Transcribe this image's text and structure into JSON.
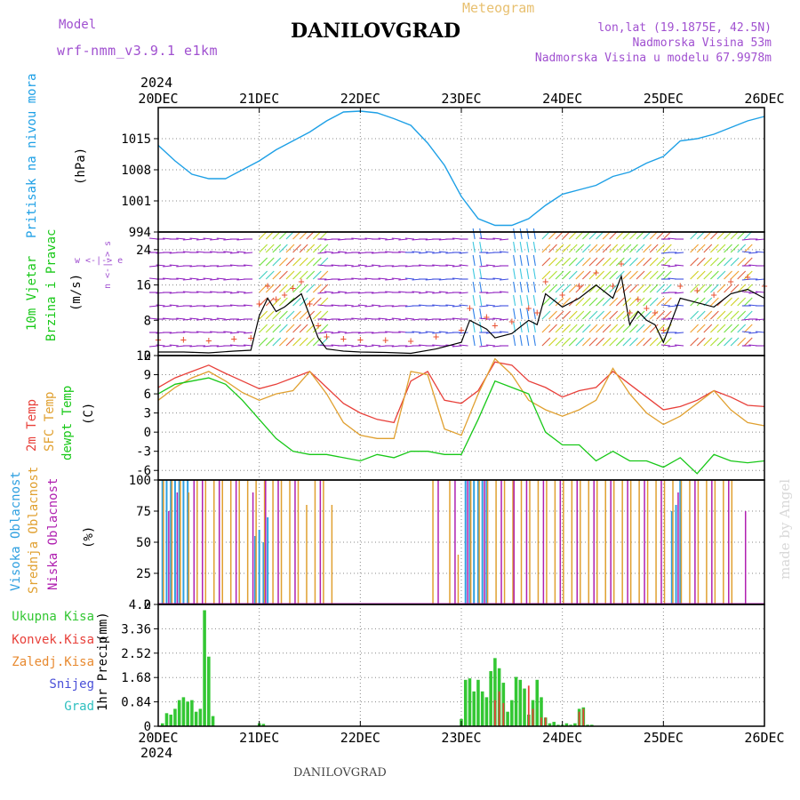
{
  "header": {
    "model_label": "Model",
    "model_value": "wrf-nmm_v3.9.1  e1km",
    "title": "DANILOVGRAD",
    "subtitle": "Meteogram",
    "lonlat": "lon,lat (19.1875E, 42.5N)",
    "elevation": "Nadmorska Visina 53m",
    "model_elevation": "Nadmorska Visina u modelu 67.9978m",
    "credit": "made by Angel",
    "footer": "DANILOVGRAD"
  },
  "colors": {
    "pressure": "#1ea0e6",
    "temp2m": "#e8403a",
    "sfc_temp": "#e0a030",
    "dewpt": "#18c818",
    "total_precip": "#33c733",
    "conv_precip": "#e8403a",
    "snow": "#4a50d8",
    "hail": "#30c0c0",
    "cloud_high": "#2fa0e0",
    "cloud_mid": "#e0a030",
    "cloud_low": "#b020b0",
    "title_purple": "#a050d0"
  },
  "chart_data": [
    {
      "type": "line",
      "panel": "pressure",
      "ylabel_parts": [
        "Pritisak na nivou mora",
        "(hPa)"
      ],
      "yticks": [
        "1015",
        "1008",
        "1001",
        "994"
      ],
      "ylim": [
        994,
        1022
      ],
      "x_range_hours": [
        0,
        144
      ],
      "x_ticks": [
        "20DEC",
        "21DEC",
        "22DEC",
        "23DEC",
        "24DEC",
        "25DEC",
        "26DEC"
      ],
      "x_year": "2024",
      "series": [
        {
          "values_x": [
            0,
            4,
            8,
            12,
            16,
            20,
            24,
            28,
            32,
            36,
            40,
            44,
            48,
            52,
            56,
            60,
            64,
            68,
            72,
            76,
            80,
            84,
            88,
            92,
            96,
            100,
            104,
            108,
            112,
            116,
            120,
            124,
            128,
            132,
            136,
            140,
            144
          ],
          "values": [
            1013.5,
            1010,
            1007,
            1006,
            1006,
            1008,
            1010,
            1012.5,
            1014.5,
            1016.5,
            1019,
            1021,
            1021.2,
            1020.8,
            1019.5,
            1018,
            1014,
            1009,
            1002,
            997,
            995.5,
            995.5,
            997,
            1000,
            1002.5,
            1003.5,
            1004.5,
            1006.5,
            1007.5,
            1009.5,
            1011,
            1014.5,
            1015,
            1016,
            1017.5,
            1019,
            1020
          ]
        }
      ]
    },
    {
      "type": "line",
      "panel": "wind",
      "ylabel_parts": [
        "10m Vjetar",
        "Brzina i Pravac",
        "(m/s)"
      ],
      "direction_legend": "w <-|-> e",
      "direction_legend_ns": "n <-|-> s",
      "yticks": [
        "24",
        "16",
        "8",
        "0"
      ],
      "ylim": [
        0,
        28
      ],
      "series": [
        {
          "name": "speed",
          "values_x": [
            0,
            6,
            12,
            18,
            22,
            24,
            26,
            28,
            30,
            32,
            34,
            36,
            38,
            40,
            44,
            48,
            54,
            60,
            66,
            72,
            74,
            78,
            80,
            84,
            88,
            90,
            92,
            96,
            100,
            104,
            108,
            110,
            112,
            114,
            116,
            118,
            120,
            124,
            128,
            132,
            136,
            140,
            144
          ],
          "values": [
            0.8,
            0.8,
            0.6,
            1.0,
            1.2,
            9,
            13,
            10,
            11,
            12.5,
            14,
            9,
            4,
            1.5,
            1,
            0.8,
            0.7,
            0.5,
            1.5,
            3,
            8,
            6,
            4,
            5,
            8,
            7,
            14,
            11,
            13,
            16,
            13,
            18,
            7,
            10,
            8,
            7,
            3,
            13,
            12,
            11,
            14,
            15,
            13
          ]
        }
      ]
    },
    {
      "type": "line",
      "panel": "temperature",
      "ylabel_parts": [
        "2m Temp",
        "SFC Temp",
        "dewpt Temp",
        "(C)"
      ],
      "yticks": [
        "12",
        "9",
        "6",
        "3",
        "0",
        "-3",
        "-6"
      ],
      "ylim": [
        -7.5,
        12
      ],
      "series": [
        {
          "name": "2m Temp",
          "values_x": [
            0,
            4,
            8,
            12,
            16,
            20,
            24,
            28,
            32,
            36,
            40,
            44,
            48,
            52,
            56,
            60,
            64,
            68,
            72,
            76,
            80,
            84,
            88,
            92,
            96,
            100,
            104,
            108,
            112,
            116,
            120,
            124,
            128,
            132,
            136,
            140,
            144
          ],
          "values": [
            7,
            8.5,
            9.5,
            10.5,
            9.2,
            8,
            6.8,
            7.5,
            8.5,
            9.5,
            7,
            4.5,
            3,
            2,
            1.5,
            8,
            9.5,
            5,
            4.5,
            6.5,
            11,
            10.5,
            8,
            7,
            5.5,
            6.5,
            7,
            9.5,
            7.5,
            5.5,
            3.5,
            4,
            5,
            6.5,
            5.5,
            4.2,
            4
          ]
        },
        {
          "name": "SFC Temp",
          "values_x": [
            0,
            4,
            8,
            12,
            16,
            20,
            24,
            28,
            32,
            36,
            40,
            44,
            48,
            52,
            56,
            60,
            64,
            68,
            72,
            76,
            80,
            84,
            88,
            92,
            96,
            100,
            104,
            108,
            112,
            116,
            120,
            124,
            128,
            132,
            136,
            140,
            144
          ],
          "values": [
            5,
            7,
            8.5,
            9.5,
            8,
            6.2,
            5,
            6,
            6.5,
            9.5,
            6,
            1.5,
            -0.5,
            -1,
            -1,
            9.5,
            9,
            0.5,
            -0.5,
            6,
            11.5,
            9,
            5,
            3.5,
            2.5,
            3.5,
            5,
            10,
            6,
            3,
            1.2,
            2.5,
            4.5,
            6.5,
            3.5,
            1.5,
            1
          ]
        },
        {
          "name": "dewpt Temp",
          "values_x": [
            0,
            4,
            8,
            12,
            16,
            20,
            24,
            28,
            32,
            36,
            40,
            44,
            48,
            52,
            56,
            60,
            64,
            68,
            72,
            76,
            80,
            84,
            88,
            92,
            96,
            100,
            104,
            108,
            112,
            116,
            120,
            124,
            128,
            132,
            136,
            140,
            144
          ],
          "values": [
            6,
            7.5,
            8,
            8.5,
            7.5,
            5,
            2,
            -1,
            -3,
            -3.5,
            -3.5,
            -4,
            -4.5,
            -3.5,
            -4,
            -3,
            -3,
            -3.5,
            -3.5,
            2,
            8,
            7,
            6,
            0,
            -2,
            -2,
            -4.5,
            -3,
            -4.5,
            -4.5,
            -5.5,
            -4,
            -6.5,
            -3.5,
            -4.5,
            -4.8,
            -4.5
          ]
        }
      ]
    },
    {
      "type": "bar",
      "panel": "clouds",
      "ylabel_parts": [
        "Visoka Oblacnost",
        "Srednja Oblacnost",
        "Niska Oblacnost",
        "(%)"
      ],
      "yticks": [
        "100",
        "75",
        "50",
        "25",
        "0"
      ],
      "ylim": [
        0,
        100
      ],
      "series": [
        {
          "name": "Visoka Oblacnost",
          "values_x": [
            1,
            2,
            3,
            4,
            5,
            6,
            7,
            23,
            24,
            25,
            26,
            73,
            74,
            75,
            76,
            77,
            78,
            122,
            123,
            124
          ],
          "values": [
            100,
            100,
            100,
            100,
            100,
            100,
            100,
            55,
            60,
            50,
            70,
            100,
            100,
            100,
            100,
            100,
            100,
            75,
            80,
            100
          ]
        },
        {
          "name": "Srednja Oblacnost",
          "values_x": [
            1,
            3,
            5,
            7,
            9,
            11,
            13,
            15,
            17,
            19,
            21,
            23,
            25,
            27,
            29,
            31,
            33,
            35,
            37,
            39,
            41,
            65,
            69,
            71,
            74,
            76,
            78,
            80,
            82,
            84,
            86,
            88,
            90,
            92,
            94,
            96,
            98,
            100,
            102,
            104,
            106,
            108,
            110,
            112,
            114,
            116,
            118,
            120,
            122,
            124,
            126,
            128,
            130,
            132,
            134,
            136
          ],
          "values": [
            100,
            100,
            100,
            90,
            100,
            100,
            100,
            100,
            100,
            100,
            100,
            100,
            100,
            100,
            100,
            100,
            100,
            80,
            100,
            100,
            80,
            100,
            100,
            40,
            100,
            100,
            100,
            100,
            100,
            100,
            100,
            100,
            100,
            100,
            100,
            100,
            100,
            100,
            100,
            100,
            100,
            100,
            100,
            100,
            100,
            100,
            100,
            100,
            100,
            100,
            100,
            100,
            100,
            100,
            100,
            100
          ]
        },
        {
          "name": "Niska Oblacnost",
          "values_x": [
            2,
            4,
            8,
            10,
            14,
            18,
            22,
            25,
            28,
            32,
            38,
            66,
            70,
            73,
            77,
            81,
            84,
            87,
            91,
            95,
            99,
            103,
            107,
            111,
            115,
            119,
            123,
            127,
            131,
            135,
            139
          ],
          "values": [
            75,
            90,
            100,
            100,
            100,
            100,
            90,
            100,
            100,
            100,
            100,
            100,
            100,
            100,
            100,
            100,
            100,
            100,
            100,
            100,
            100,
            100,
            100,
            100,
            100,
            100,
            90,
            100,
            100,
            100,
            75
          ]
        }
      ]
    },
    {
      "type": "bar",
      "panel": "precipitation",
      "ylabel_parts": [
        "1hr Precip",
        "(mm)"
      ],
      "legend": [
        "Ukupna Kisa",
        "Konvek.Kisa",
        "Zaledj.Kisa",
        "Snijeg",
        "Grad"
      ],
      "yticks": [
        "4.2",
        "3.36",
        "2.52",
        "1.68",
        "0.84",
        "0"
      ],
      "ylim": [
        0,
        4.2
      ],
      "series": [
        {
          "name": "Ukupna Kisa",
          "values_x": [
            1,
            2,
            3,
            4,
            5,
            6,
            7,
            8,
            9,
            10,
            11,
            12,
            13,
            24,
            25,
            72,
            73,
            74,
            75,
            76,
            77,
            78,
            79,
            80,
            81,
            82,
            83,
            84,
            85,
            86,
            87,
            88,
            89,
            90,
            91,
            92,
            93,
            94,
            95,
            96,
            97,
            98,
            99,
            100,
            101,
            102,
            103
          ],
          "values": [
            0.1,
            0.45,
            0.4,
            0.6,
            0.9,
            1.0,
            0.85,
            0.9,
            0.5,
            0.6,
            4.0,
            2.4,
            0.35,
            0.1,
            0.08,
            0.25,
            1.6,
            1.65,
            1.2,
            1.6,
            1.2,
            1.0,
            1.9,
            2.35,
            2.0,
            1.5,
            0.5,
            0.9,
            1.7,
            1.6,
            1.3,
            0.4,
            0.9,
            1.6,
            1.0,
            0.3,
            0.1,
            0.15,
            0.05,
            0.05,
            0.1,
            0.05,
            0.1,
            0.6,
            0.65,
            0.05,
            0.05
          ]
        },
        {
          "name": "Konvek.Kisa",
          "values_x": [
            80,
            81,
            82,
            88,
            89,
            91,
            92,
            100,
            101
          ],
          "values": [
            0.9,
            1.2,
            0.8,
            1.4,
            0.6,
            0.3,
            0.3,
            0.5,
            0.6
          ]
        }
      ]
    }
  ]
}
